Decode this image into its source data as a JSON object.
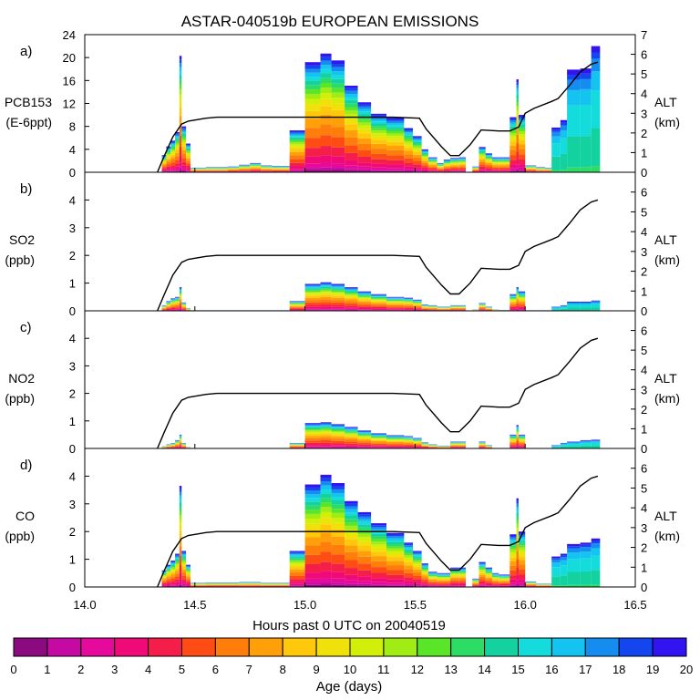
{
  "title": "ASTAR-040519b EUROPEAN EMISSIONS",
  "xlabel": "Hours past 0 UTC on 20040519",
  "x_ticks": [
    "14.0",
    "14.5",
    "15.0",
    "15.5",
    "16.0",
    "16.5"
  ],
  "colorbar": {
    "label": "Age (days)",
    "ticks": [
      "0",
      "1",
      "2",
      "3",
      "4",
      "5",
      "6",
      "7",
      "8",
      "9",
      "10",
      "11",
      "12",
      "13",
      "14",
      "15",
      "16",
      "17",
      "18",
      "19",
      "20"
    ],
    "colors": [
      "#8b0a7f",
      "#c40aa3",
      "#e60a9c",
      "#f00a78",
      "#f51e4a",
      "#ff4b14",
      "#ff7d0a",
      "#ffa00a",
      "#ffc80a",
      "#f0e10a",
      "#d2ef0a",
      "#a0ec14",
      "#5ae628",
      "#2ddc64",
      "#14d2a0",
      "#14dcdc",
      "#14c3f0",
      "#148cf0",
      "#1446f0",
      "#3214f0"
    ]
  },
  "panels": [
    {
      "letter": "a)",
      "ylabel1": "PCB153",
      "ylabel2": "(E-6ppt)",
      "ymax": 24,
      "yticks": [
        "0",
        "4",
        "8",
        "12",
        "16",
        "20",
        "24"
      ],
      "alt_max_km": 7,
      "alt_ticks": [
        "0",
        "1",
        "2",
        "3",
        "4",
        "5",
        "6",
        "7"
      ]
    },
    {
      "letter": "b)",
      "ylabel1": "SO2",
      "ylabel2": "(ppb)",
      "ymax": 5,
      "yticks": [
        "0",
        "1",
        "2",
        "3",
        "4"
      ],
      "alt_max_km": 7,
      "alt_ticks": [
        "0",
        "1",
        "2",
        "3",
        "4",
        "5",
        "6"
      ]
    },
    {
      "letter": "c)",
      "ylabel1": "NO2",
      "ylabel2": "(ppb)",
      "ymax": 5,
      "yticks": [
        "0",
        "1",
        "2",
        "3",
        "4"
      ],
      "alt_max_km": 7,
      "alt_ticks": [
        "0",
        "1",
        "2",
        "3",
        "4",
        "5",
        "6"
      ]
    },
    {
      "letter": "d)",
      "ylabel1": "CO",
      "ylabel2": "(ppb)",
      "ymax": 5,
      "yticks": [
        "0",
        "1",
        "2",
        "3",
        "4"
      ],
      "alt_max_km": 7,
      "alt_ticks": [
        "0",
        "1",
        "2",
        "3",
        "4",
        "5",
        "6"
      ]
    }
  ],
  "alt_axis": {
    "label1": "ALT",
    "label2": "(km)"
  },
  "chart_data": {
    "type": "bar",
    "title": "ASTAR-040519b EUROPEAN EMISSIONS",
    "xlabel": "Hours past 0 UTC on 20040519",
    "xlim": [
      14.0,
      16.5
    ],
    "stacking": "age-class (0-20 days)",
    "altitude_km": {
      "x": [
        14.33,
        14.36,
        14.4,
        14.44,
        14.47,
        14.55,
        14.6,
        14.7,
        14.9,
        15.0,
        15.4,
        15.52,
        15.55,
        15.62,
        15.66,
        15.7,
        15.75,
        15.8,
        15.88,
        15.93,
        15.97,
        16.0,
        16.04,
        16.12,
        16.15,
        16.2,
        16.25,
        16.3,
        16.33
      ],
      "alt": [
        0.0,
        0.8,
        1.8,
        2.45,
        2.6,
        2.75,
        2.8,
        2.8,
        2.8,
        2.8,
        2.8,
        2.75,
        2.2,
        1.3,
        0.85,
        0.85,
        1.4,
        2.15,
        2.1,
        2.1,
        2.3,
        3.0,
        3.25,
        3.6,
        3.75,
        4.4,
        5.1,
        5.5,
        5.6
      ]
    },
    "series": [
      {
        "name": "PCB153 (E-6ppt)",
        "panel": "a",
        "totals": [
          [
            14.35,
            14.37,
            3
          ],
          [
            14.37,
            14.39,
            4.5
          ],
          [
            14.39,
            14.41,
            5.5
          ],
          [
            14.41,
            14.43,
            7
          ],
          [
            14.43,
            14.44,
            20.3
          ],
          [
            14.44,
            14.46,
            8
          ],
          [
            14.46,
            14.48,
            5
          ],
          [
            14.48,
            14.55,
            0.8
          ],
          [
            14.55,
            14.65,
            0.9
          ],
          [
            14.65,
            14.7,
            1.0
          ],
          [
            14.7,
            14.75,
            1.3
          ],
          [
            14.75,
            14.8,
            1.6
          ],
          [
            14.8,
            14.85,
            1.2
          ],
          [
            14.85,
            14.93,
            1.1
          ],
          [
            14.93,
            15.0,
            7.3
          ],
          [
            15.0,
            15.07,
            19.2
          ],
          [
            15.07,
            15.12,
            20.7
          ],
          [
            15.12,
            15.18,
            19.5
          ],
          [
            15.18,
            15.24,
            15.1
          ],
          [
            15.24,
            15.3,
            12.2
          ],
          [
            15.3,
            15.37,
            10.2
          ],
          [
            15.37,
            15.45,
            9.5
          ],
          [
            15.45,
            15.49,
            7.7
          ],
          [
            15.49,
            15.53,
            6.3
          ],
          [
            15.53,
            15.56,
            4.0
          ],
          [
            15.56,
            15.6,
            2.6
          ],
          [
            15.6,
            15.63,
            1.6
          ],
          [
            15.63,
            15.66,
            2.2
          ],
          [
            15.66,
            15.7,
            2.5
          ],
          [
            15.7,
            15.73,
            2.6
          ],
          [
            15.76,
            15.79,
            1.0
          ],
          [
            15.79,
            15.82,
            4.4
          ],
          [
            15.82,
            15.85,
            3.3
          ],
          [
            15.85,
            15.88,
            2.6
          ],
          [
            15.88,
            15.93,
            2.6
          ],
          [
            15.93,
            15.96,
            9.6
          ],
          [
            15.96,
            15.97,
            16.2
          ],
          [
            15.97,
            16.0,
            10
          ],
          [
            16.0,
            16.05,
            1.2
          ],
          [
            16.05,
            16.09,
            0.9
          ],
          [
            16.09,
            16.12,
            0.8
          ],
          [
            16.12,
            16.16,
            7.8
          ],
          [
            16.16,
            16.19,
            9.1
          ],
          [
            16.19,
            16.25,
            17.9
          ],
          [
            16.25,
            16.3,
            18.1
          ],
          [
            16.3,
            16.34,
            22.0
          ]
        ]
      },
      {
        "name": "SO2 (ppb)",
        "panel": "b",
        "totals": [
          [
            14.35,
            14.37,
            0.2
          ],
          [
            14.37,
            14.39,
            0.35
          ],
          [
            14.39,
            14.41,
            0.45
          ],
          [
            14.41,
            14.43,
            0.5
          ],
          [
            14.43,
            14.44,
            0.85
          ],
          [
            14.44,
            14.46,
            0.3
          ],
          [
            14.46,
            14.48,
            0.1
          ],
          [
            14.48,
            14.93,
            0.02
          ],
          [
            14.93,
            15.0,
            0.35
          ],
          [
            15.0,
            15.07,
            0.97
          ],
          [
            15.07,
            15.12,
            1.03
          ],
          [
            15.12,
            15.18,
            0.97
          ],
          [
            15.18,
            15.24,
            0.85
          ],
          [
            15.24,
            15.3,
            0.7
          ],
          [
            15.3,
            15.37,
            0.6
          ],
          [
            15.37,
            15.45,
            0.5
          ],
          [
            15.45,
            15.49,
            0.47
          ],
          [
            15.49,
            15.53,
            0.4
          ],
          [
            15.53,
            15.56,
            0.23
          ],
          [
            15.56,
            15.6,
            0.2
          ],
          [
            15.6,
            15.66,
            0.15
          ],
          [
            15.66,
            15.7,
            0.2
          ],
          [
            15.7,
            15.73,
            0.2
          ],
          [
            15.76,
            15.79,
            0.05
          ],
          [
            15.79,
            15.82,
            0.28
          ],
          [
            15.82,
            15.85,
            0.15
          ],
          [
            15.85,
            15.88,
            0.05
          ],
          [
            15.88,
            15.93,
            0.03
          ],
          [
            15.93,
            15.96,
            0.6
          ],
          [
            15.96,
            15.97,
            0.85
          ],
          [
            15.97,
            16.0,
            0.7
          ],
          [
            16.0,
            16.12,
            0.02
          ],
          [
            16.12,
            16.16,
            0.15
          ],
          [
            16.16,
            16.19,
            0.2
          ],
          [
            16.19,
            16.25,
            0.33
          ],
          [
            16.25,
            16.3,
            0.33
          ],
          [
            16.3,
            16.34,
            0.37
          ]
        ]
      },
      {
        "name": "NO2 (ppb)",
        "panel": "c",
        "totals": [
          [
            14.35,
            14.37,
            0.08
          ],
          [
            14.37,
            14.39,
            0.15
          ],
          [
            14.39,
            14.41,
            0.2
          ],
          [
            14.41,
            14.43,
            0.3
          ],
          [
            14.43,
            14.44,
            0.5
          ],
          [
            14.44,
            14.46,
            0.2
          ],
          [
            14.46,
            14.48,
            0.05
          ],
          [
            14.93,
            15.0,
            0.2
          ],
          [
            15.0,
            15.07,
            0.92
          ],
          [
            15.07,
            15.12,
            0.95
          ],
          [
            15.12,
            15.18,
            0.88
          ],
          [
            15.18,
            15.24,
            0.78
          ],
          [
            15.24,
            15.3,
            0.65
          ],
          [
            15.3,
            15.37,
            0.55
          ],
          [
            15.37,
            15.45,
            0.48
          ],
          [
            15.45,
            15.49,
            0.45
          ],
          [
            15.49,
            15.53,
            0.38
          ],
          [
            15.53,
            15.56,
            0.22
          ],
          [
            15.56,
            15.6,
            0.15
          ],
          [
            15.6,
            15.66,
            0.1
          ],
          [
            15.66,
            15.7,
            0.25
          ],
          [
            15.7,
            15.73,
            0.25
          ],
          [
            15.79,
            15.82,
            0.25
          ],
          [
            15.82,
            15.85,
            0.12
          ],
          [
            15.93,
            15.96,
            0.5
          ],
          [
            15.96,
            15.97,
            0.85
          ],
          [
            15.97,
            16.0,
            0.5
          ],
          [
            16.12,
            16.16,
            0.12
          ],
          [
            16.16,
            16.19,
            0.2
          ],
          [
            16.19,
            16.25,
            0.25
          ],
          [
            16.25,
            16.3,
            0.3
          ],
          [
            16.3,
            16.34,
            0.32
          ]
        ]
      },
      {
        "name": "CO (ppb)",
        "panel": "d",
        "totals": [
          [
            14.35,
            14.37,
            0.6
          ],
          [
            14.37,
            14.39,
            0.8
          ],
          [
            14.39,
            14.41,
            0.95
          ],
          [
            14.41,
            14.43,
            1.2
          ],
          [
            14.43,
            14.44,
            3.65
          ],
          [
            14.44,
            14.46,
            1.3
          ],
          [
            14.46,
            14.48,
            0.8
          ],
          [
            14.48,
            14.55,
            0.15
          ],
          [
            14.55,
            14.7,
            0.16
          ],
          [
            14.7,
            14.8,
            0.18
          ],
          [
            14.8,
            14.93,
            0.15
          ],
          [
            14.93,
            15.0,
            1.3
          ],
          [
            15.0,
            15.07,
            3.7
          ],
          [
            15.07,
            15.12,
            4.05
          ],
          [
            15.12,
            15.18,
            3.75
          ],
          [
            15.18,
            15.24,
            3.1
          ],
          [
            15.24,
            15.3,
            2.7
          ],
          [
            15.3,
            15.37,
            2.3
          ],
          [
            15.37,
            15.45,
            1.95
          ],
          [
            15.45,
            15.49,
            1.6
          ],
          [
            15.49,
            15.53,
            1.3
          ],
          [
            15.53,
            15.56,
            0.85
          ],
          [
            15.56,
            15.6,
            0.55
          ],
          [
            15.6,
            15.66,
            0.5
          ],
          [
            15.66,
            15.7,
            0.7
          ],
          [
            15.7,
            15.73,
            0.7
          ],
          [
            15.76,
            15.79,
            0.3
          ],
          [
            15.79,
            15.82,
            0.9
          ],
          [
            15.82,
            15.85,
            0.7
          ],
          [
            15.85,
            15.88,
            0.5
          ],
          [
            15.88,
            15.93,
            0.45
          ],
          [
            15.93,
            15.96,
            1.9
          ],
          [
            15.96,
            15.97,
            3.2
          ],
          [
            15.97,
            16.0,
            2.0
          ],
          [
            16.0,
            16.05,
            0.2
          ],
          [
            16.05,
            16.12,
            0.12
          ],
          [
            16.12,
            16.16,
            1.1
          ],
          [
            16.16,
            16.19,
            1.2
          ],
          [
            16.19,
            16.25,
            1.55
          ],
          [
            16.25,
            16.3,
            1.6
          ],
          [
            16.3,
            16.34,
            1.75
          ]
        ]
      }
    ]
  }
}
